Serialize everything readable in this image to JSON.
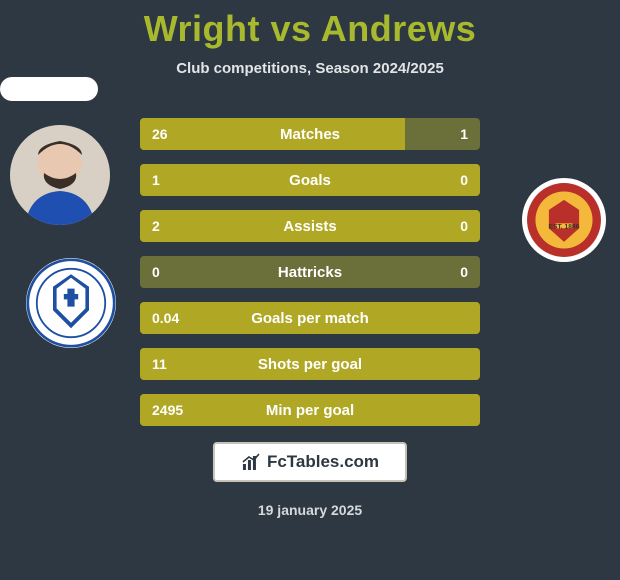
{
  "title": "Wright vs Andrews",
  "subtitle": "Club competitions, Season 2024/2025",
  "footer_brand": "FcTables.com",
  "footer_date": "19 january 2025",
  "colors": {
    "page_bg": "#2d3842",
    "title": "#a9b92e",
    "bar_track": "#6b6f3a",
    "bar_fill": "#b0a824",
    "text_light": "#ffffff"
  },
  "left_player": {
    "name": "Wright",
    "club": "St Johnstone"
  },
  "right_player": {
    "name": "Andrews",
    "club": "Motherwell"
  },
  "stats": [
    {
      "label": "Matches",
      "left_display": "26",
      "right_display": "1",
      "left_pct": 78,
      "right_pct": 0
    },
    {
      "label": "Goals",
      "left_display": "1",
      "right_display": "0",
      "left_pct": 100,
      "right_pct": 0
    },
    {
      "label": "Assists",
      "left_display": "2",
      "right_display": "0",
      "left_pct": 100,
      "right_pct": 0
    },
    {
      "label": "Hattricks",
      "left_display": "0",
      "right_display": "0",
      "left_pct": 0,
      "right_pct": 0
    },
    {
      "label": "Goals per match",
      "left_display": "0.04",
      "right_display": "",
      "left_pct": 100,
      "right_pct": 0
    },
    {
      "label": "Shots per goal",
      "left_display": "11",
      "right_display": "",
      "left_pct": 100,
      "right_pct": 0
    },
    {
      "label": "Min per goal",
      "left_display": "2495",
      "right_display": "",
      "left_pct": 100,
      "right_pct": 0
    }
  ]
}
